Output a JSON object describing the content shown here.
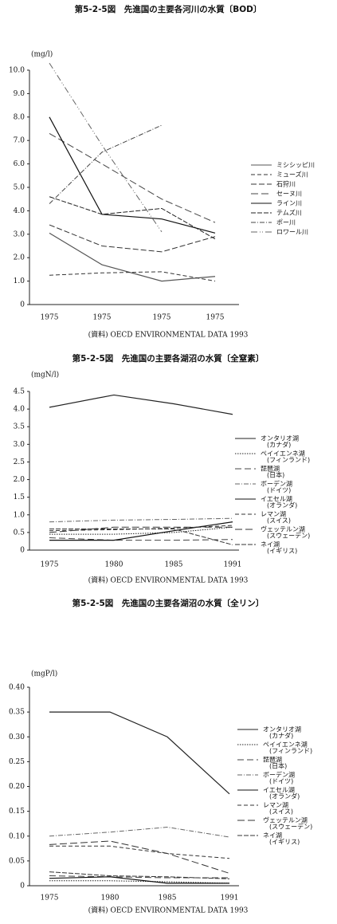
{
  "chart_data": [
    {
      "type": "line",
      "title": "第5-2-5図　先進国の主要各河川の水質〔BOD〕",
      "y_label": "(mg/l)",
      "source": "(資料) OECD ENVIRONMENTAL DATA 1993",
      "categories": [
        "1975",
        "1975",
        "1975",
        "1975"
      ],
      "ylim": [
        0,
        10
      ],
      "yticks": [
        0,
        {
          "value": 1,
          "label": "1.0"
        },
        {
          "value": 2,
          "label": "2.0"
        },
        {
          "value": 3,
          "label": "3.0"
        },
        {
          "value": 4,
          "label": "4.0"
        },
        {
          "value": 5,
          "label": "5.0"
        },
        {
          "value": 6,
          "label": "6.0"
        },
        {
          "value": 7,
          "label": "7.0"
        },
        {
          "value": 8,
          "label": "8.0"
        },
        {
          "value": 9,
          "label": "9.0"
        },
        {
          "value": 10,
          "label": "10.0"
        }
      ],
      "series": [
        {
          "name": "ミシシッピ川",
          "color": "#555",
          "dash": "",
          "values": [
            3.05,
            1.7,
            1.0,
            1.2
          ]
        },
        {
          "name": "ミューズ川",
          "color": "#333",
          "dash": "5 3",
          "values": [
            1.25,
            1.35,
            1.4,
            1.0
          ]
        },
        {
          "name": "石狩川",
          "color": "#333",
          "dash": "7 3",
          "values": [
            3.4,
            2.5,
            2.25,
            2.9
          ]
        },
        {
          "name": "セーヌ川",
          "color": "#444",
          "dash": "9 4",
          "values": [
            7.3,
            6.0,
            4.5,
            3.5
          ]
        },
        {
          "name": "ライン川",
          "color": "#111",
          "dash": "",
          "values": [
            8.0,
            3.85,
            3.65,
            3.05
          ]
        },
        {
          "name": "テムズ川",
          "color": "#222",
          "dash": "6 2",
          "values": [
            4.6,
            3.85,
            4.1,
            2.8
          ]
        },
        {
          "name": "ポー川",
          "color": "#444",
          "dash": "6 2 1 2",
          "values": [
            4.3,
            6.5,
            7.65,
            null
          ]
        },
        {
          "name": "ロワール川",
          "color": "#666",
          "dash": "8 3 1 2 1 3",
          "values": [
            10.3,
            6.8,
            3.1,
            null
          ]
        }
      ]
    },
    {
      "type": "line",
      "title": "第5-2-5図　先進国の主要各湖沼の水質〔全窒素〕",
      "y_label": "(mgN/l)",
      "source": "(資料) OECD ENVIRONMENTAL DATA 1993",
      "categories": [
        "1975",
        "1980",
        "1985",
        "1991"
      ],
      "ylim": [
        0,
        4.5
      ],
      "yticks": [
        0,
        0.5,
        {
          "value": 1,
          "label": "1.0"
        },
        1.5,
        {
          "value": 2,
          "label": "2.0"
        },
        2.5,
        {
          "value": 3,
          "label": "3.0"
        },
        3.5,
        {
          "value": 4,
          "label": "4.0"
        },
        4.5
      ],
      "series": [
        {
          "name": "オンタリオ湖",
          "note": "(カナダ)",
          "color": "#222",
          "dash": "",
          "values": [
            4.05,
            4.4,
            4.15,
            3.85
          ]
        },
        {
          "name": "ペイイエンネ湖",
          "note": "(フィンランド)",
          "color": "#222",
          "dash": "1.5 1.5",
          "values": [
            0.45,
            0.45,
            0.5,
            0.65
          ]
        },
        {
          "name": "琵琶湖",
          "note": "(日本)",
          "color": "#444",
          "dash": "8 4",
          "values": [
            0.35,
            0.28,
            0.28,
            0.3
          ]
        },
        {
          "name": "ボーデン湖",
          "note": "(ドイツ)",
          "color": "#666",
          "dash": "6 2 1 2",
          "values": [
            0.8,
            0.85,
            0.87,
            0.9
          ]
        },
        {
          "name": "イエセル湖",
          "note": "(オランダ)",
          "color": "#111",
          "dash": "",
          "values": [
            0.28,
            0.28,
            0.55,
            0.8
          ]
        },
        {
          "name": "レマン湖",
          "note": "(スイス)",
          "color": "#333",
          "dash": "5 3",
          "values": [
            0.55,
            0.58,
            0.62,
            0.7
          ]
        },
        {
          "name": "ヴェッテルン湖",
          "note": "(スウェーデン)",
          "color": "#333",
          "dash": "9 4",
          "values": [
            0.5,
            0.65,
            0.65,
            0.65
          ]
        },
        {
          "name": "ネイ湖",
          "note": "(イギリス)",
          "color": "#333",
          "dash": "6 2",
          "values": [
            0.6,
            0.6,
            0.6,
            0.15
          ]
        }
      ]
    },
    {
      "type": "line",
      "title": "第5-2-5図　先進国の主要各湖沼の水質〔全リン〕",
      "y_label": "(mgP/l)",
      "source": "(資料) OECD ENVIRONMENTAL DATA 1993",
      "categories": [
        "1975",
        "1980",
        "1985",
        "1991"
      ],
      "ylim": [
        0,
        0.4
      ],
      "yticks": [
        0,
        0.05,
        {
          "value": 0.1,
          "label": "0.10"
        },
        0.15,
        {
          "value": 0.2,
          "label": "0.20"
        },
        0.25,
        {
          "value": 0.3,
          "label": "0.30"
        },
        0.35,
        {
          "value": 0.4,
          "label": "0.40"
        }
      ],
      "series": [
        {
          "name": "オンタリオ湖",
          "note": "(カナダ)",
          "color": "#222",
          "dash": "",
          "values": [
            0.35,
            0.35,
            0.3,
            0.185
          ]
        },
        {
          "name": "ペイイエンネ湖",
          "note": "(フィンランド)",
          "color": "#222",
          "dash": "1.5 1.5",
          "values": [
            0.01,
            0.01,
            0.008,
            0.005
          ]
        },
        {
          "name": "琵琶湖",
          "note": "(日本)",
          "color": "#444",
          "dash": "8 4",
          "values": [
            0.02,
            0.018,
            0.016,
            0.016
          ]
        },
        {
          "name": "ボーデン湖",
          "note": "(ドイツ)",
          "color": "#666",
          "dash": "6 2 1 2",
          "values": [
            0.1,
            0.108,
            0.118,
            0.098
          ]
        },
        {
          "name": "イエセル湖",
          "note": "(オランダ)",
          "color": "#111",
          "dash": "",
          "values": [
            0.015,
            0.018,
            0.005,
            0.005
          ]
        },
        {
          "name": "レマン湖",
          "note": "(スイス)",
          "color": "#333",
          "dash": "5 3",
          "values": [
            0.08,
            0.08,
            0.065,
            0.055
          ]
        },
        {
          "name": "ヴェッテルン湖",
          "note": "(スウェーデン)",
          "color": "#333",
          "dash": "9 4",
          "values": [
            0.083,
            0.09,
            0.065,
            0.025
          ]
        },
        {
          "name": "ネイ湖",
          "note": "(イギリス)",
          "color": "#333",
          "dash": "6 2",
          "values": [
            0.028,
            0.02,
            0.018,
            0.014
          ]
        }
      ]
    }
  ]
}
